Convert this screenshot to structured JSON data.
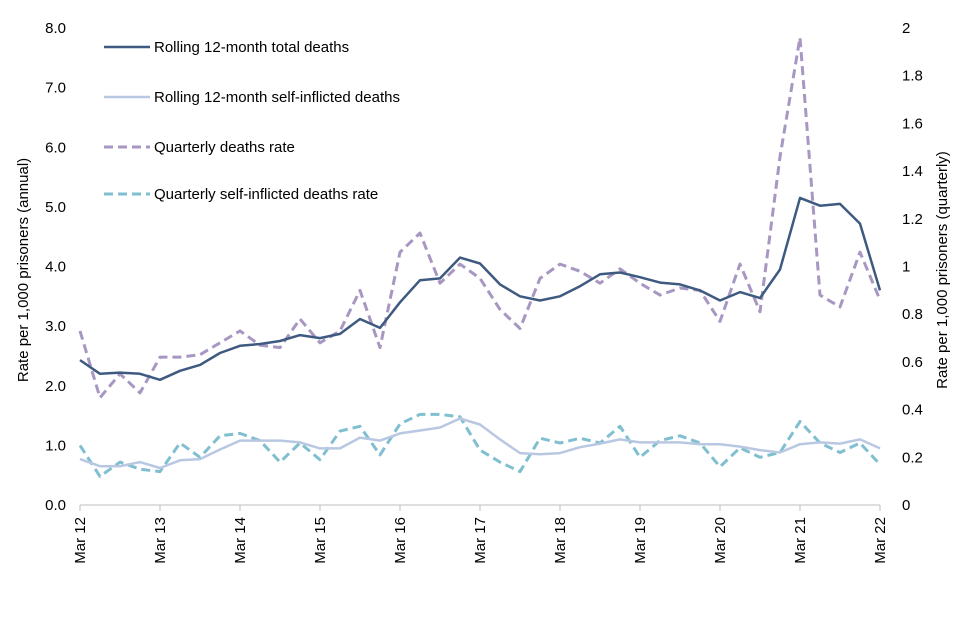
{
  "chart_data": {
    "type": "line",
    "title": "",
    "x_tick_labels": [
      "Mar 12",
      "Mar 13",
      "Mar 14",
      "Mar 15",
      "Mar 16",
      "Mar 17",
      "Mar 18",
      "Mar 19",
      "Mar 20",
      "Mar 21",
      "Mar 22"
    ],
    "x_range": [
      0,
      40
    ],
    "ylabel_left": "Rate per 1,000 prisoners (annual)",
    "ylabel_right": "Rate per 1,000 prisoners (quarterly)",
    "ylim_left": [
      0,
      8
    ],
    "ylim_right": [
      0,
      2
    ],
    "y_ticks_left": [
      "0.0",
      "1.0",
      "2.0",
      "3.0",
      "4.0",
      "5.0",
      "6.0",
      "7.0",
      "8.0"
    ],
    "y_ticks_right": [
      "0",
      "0.2",
      "0.4",
      "0.6",
      "0.8",
      "1",
      "1.2",
      "1.4",
      "1.6",
      "1.8",
      "2"
    ],
    "grid": false,
    "legend_position": "top-left",
    "series": [
      {
        "name": "Rolling 12-month total deaths",
        "axis": "left",
        "style": "solid",
        "color": "#3e5a80",
        "width": 2.5,
        "values": [
          2.43,
          2.2,
          2.22,
          2.2,
          2.1,
          2.25,
          2.35,
          2.55,
          2.67,
          2.7,
          2.75,
          2.85,
          2.8,
          2.87,
          3.12,
          2.97,
          3.4,
          3.77,
          3.8,
          4.15,
          4.05,
          3.7,
          3.5,
          3.43,
          3.5,
          3.67,
          3.87,
          3.9,
          3.82,
          3.73,
          3.7,
          3.6,
          3.43,
          3.57,
          3.47,
          3.95,
          5.15,
          5.02,
          5.05,
          4.72,
          3.6
        ]
      },
      {
        "name": "Rolling 12-month self-inflicted deaths",
        "axis": "left",
        "style": "solid",
        "color": "#b9c8e2",
        "width": 2.5,
        "values": [
          0.77,
          0.65,
          0.65,
          0.72,
          0.62,
          0.75,
          0.77,
          0.93,
          1.08,
          1.08,
          1.08,
          1.05,
          0.95,
          0.95,
          1.13,
          1.08,
          1.2,
          1.25,
          1.3,
          1.45,
          1.35,
          1.1,
          0.87,
          0.85,
          0.87,
          0.97,
          1.03,
          1.1,
          1.05,
          1.05,
          1.05,
          1.02,
          1.02,
          0.98,
          0.92,
          0.88,
          1.02,
          1.05,
          1.03,
          1.1,
          0.95
        ]
      },
      {
        "name": "Quarterly deaths rate",
        "axis": "right",
        "style": "dashed",
        "color": "#a897c2",
        "width": 3,
        "values": [
          0.73,
          0.45,
          0.55,
          0.47,
          0.62,
          0.62,
          0.63,
          0.68,
          0.73,
          0.67,
          0.66,
          0.78,
          0.68,
          0.73,
          0.9,
          0.66,
          1.06,
          1.14,
          0.93,
          1.01,
          0.95,
          0.82,
          0.74,
          0.95,
          1.01,
          0.98,
          0.93,
          0.99,
          0.93,
          0.88,
          0.91,
          0.9,
          0.77,
          1.01,
          0.81,
          1.46,
          1.96,
          0.88,
          0.83,
          1.06,
          0.86
        ]
      },
      {
        "name": "Quarterly self-inflicted deaths rate",
        "axis": "right",
        "style": "dashed",
        "color": "#7fbfd0",
        "width": 3,
        "values": [
          0.25,
          0.12,
          0.18,
          0.15,
          0.14,
          0.26,
          0.2,
          0.29,
          0.3,
          0.27,
          0.18,
          0.26,
          0.19,
          0.31,
          0.33,
          0.21,
          0.34,
          0.38,
          0.38,
          0.37,
          0.23,
          0.18,
          0.14,
          0.28,
          0.26,
          0.28,
          0.26,
          0.33,
          0.2,
          0.27,
          0.29,
          0.26,
          0.16,
          0.24,
          0.2,
          0.22,
          0.35,
          0.26,
          0.22,
          0.26,
          0.17
        ]
      }
    ]
  }
}
